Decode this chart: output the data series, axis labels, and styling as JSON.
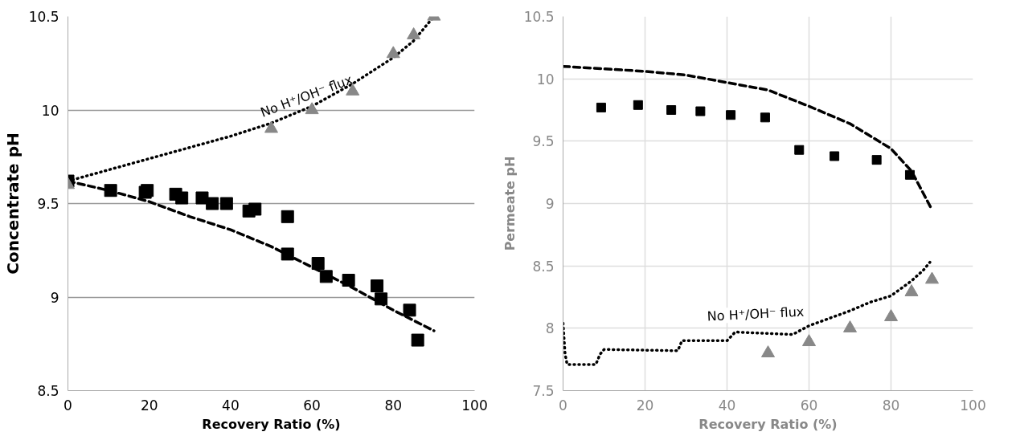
{
  "chart_data": [
    {
      "type": "scatter",
      "xlabel": "Recovery Ratio (%)",
      "ylabel": "Concentrate pH",
      "xlim": [
        0,
        100
      ],
      "xticks": [
        0,
        20,
        40,
        60,
        80,
        100
      ],
      "ylim": [
        8.5,
        10.5
      ],
      "yticks": [
        8.5,
        9,
        9.5,
        10,
        10.5
      ],
      "grid": "y",
      "annotations": [
        "No H⁺/OH⁻ flux"
      ],
      "series": [
        {
          "type": "line",
          "line_style": "dotted",
          "color": "#000000",
          "x": [
            0,
            10,
            20,
            30,
            40,
            50,
            60,
            70,
            80,
            85,
            90
          ],
          "values": [
            9.62,
            9.68,
            9.74,
            9.8,
            9.86,
            9.93,
            10.02,
            10.14,
            10.28,
            10.37,
            10.5
          ]
        },
        {
          "type": "line",
          "line_style": "dashed",
          "color": "#000000",
          "x": [
            0,
            10,
            20,
            30,
            40,
            50,
            60,
            70,
            80,
            90
          ],
          "values": [
            9.62,
            9.57,
            9.51,
            9.43,
            9.36,
            9.27,
            9.16,
            9.05,
            8.93,
            8.82
          ]
        },
        {
          "marker": "square",
          "color": "#000000",
          "x": [
            0,
            10.5,
            19,
            19.5,
            26.5,
            28,
            33,
            35.5,
            39,
            44.5,
            46,
            54,
            54,
            61.5,
            63.5,
            69,
            76,
            77,
            84,
            86
          ],
          "values": [
            9.62,
            9.57,
            9.56,
            9.57,
            9.55,
            9.53,
            9.53,
            9.5,
            9.5,
            9.46,
            9.47,
            9.43,
            9.23,
            9.18,
            9.11,
            9.09,
            9.06,
            8.99,
            8.93,
            8.77
          ]
        },
        {
          "marker": "triangle",
          "color": "#888888",
          "x": [
            0,
            50,
            60,
            70,
            80,
            85,
            90
          ],
          "values": [
            9.6,
            9.9,
            10.0,
            10.1,
            10.3,
            10.4,
            10.5
          ]
        }
      ]
    },
    {
      "type": "scatter",
      "xlabel": "Recovery Ratio (%)",
      "ylabel": "Permeate pH",
      "xlim": [
        0,
        100
      ],
      "xticks": [
        0,
        20,
        40,
        60,
        80,
        100
      ],
      "ylim": [
        7.5,
        10.5
      ],
      "yticks": [
        7.5,
        8,
        8.5,
        9,
        9.5,
        10,
        10.5
      ],
      "grid": true,
      "annotations": [
        "No H⁺/OH⁻ flux"
      ],
      "series": [
        {
          "type": "line",
          "line_style": "dashed",
          "color": "#000000",
          "x": [
            0,
            20,
            30,
            40,
            50,
            60,
            70,
            80,
            85,
            90
          ],
          "values": [
            10.1,
            10.06,
            10.03,
            9.97,
            9.91,
            9.78,
            9.64,
            9.44,
            9.26,
            8.95
          ]
        },
        {
          "type": "line",
          "line_style": "dotted",
          "color": "#000000",
          "x": [
            0,
            0.5,
            1,
            8,
            9,
            10,
            28,
            29,
            40,
            42,
            56,
            60,
            65,
            70,
            75,
            80,
            85,
            88,
            89.5
          ],
          "values": [
            8.04,
            7.79,
            7.71,
            7.71,
            7.79,
            7.83,
            7.82,
            7.9,
            7.9,
            7.97,
            7.95,
            8.02,
            8.08,
            8.14,
            8.21,
            8.26,
            8.38,
            8.47,
            8.53
          ]
        },
        {
          "marker": "square",
          "color": "#000000",
          "x": [
            9.3,
            18.3,
            26.4,
            33.5,
            40.9,
            49.3,
            57.6,
            66.2,
            76.5,
            84.6
          ],
          "values": [
            9.77,
            9.79,
            9.75,
            9.74,
            9.71,
            9.69,
            9.43,
            9.38,
            9.35,
            9.23
          ]
        },
        {
          "marker": "triangle",
          "color": "#888888",
          "x": [
            50,
            60,
            70,
            80,
            85,
            90
          ],
          "values": [
            7.8,
            7.89,
            8.0,
            8.09,
            8.29,
            8.39
          ]
        }
      ]
    }
  ]
}
